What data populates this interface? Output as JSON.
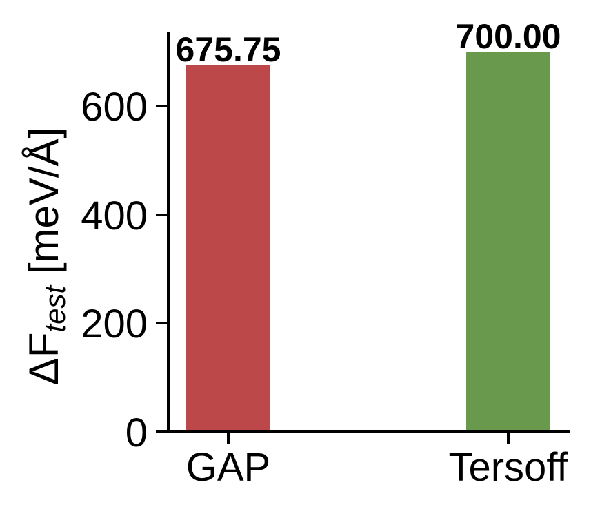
{
  "chart_data": {
    "type": "bar",
    "title": "",
    "categories": [
      "GAP",
      "Tersoff"
    ],
    "values": [
      675.75,
      700.0
    ],
    "bar_labels": [
      "675.75",
      "700.00"
    ],
    "bar_colors": [
      "#bc4849",
      "#69994d"
    ],
    "xlabel": "",
    "ylabel": "ΔF_test [meV/Å]",
    "ylabel_parts": {
      "prefix": "ΔF",
      "subscript": "test",
      "suffix": " [meV/Å]"
    },
    "yticks": [
      "0",
      "200",
      "400",
      "600"
    ],
    "ytick_values": [
      0,
      200,
      400,
      600
    ],
    "ylim": [
      0,
      736
    ],
    "grid": false,
    "legend": false,
    "spine_color": "#000000",
    "text_color": "#000000",
    "background": "#ffffff"
  }
}
